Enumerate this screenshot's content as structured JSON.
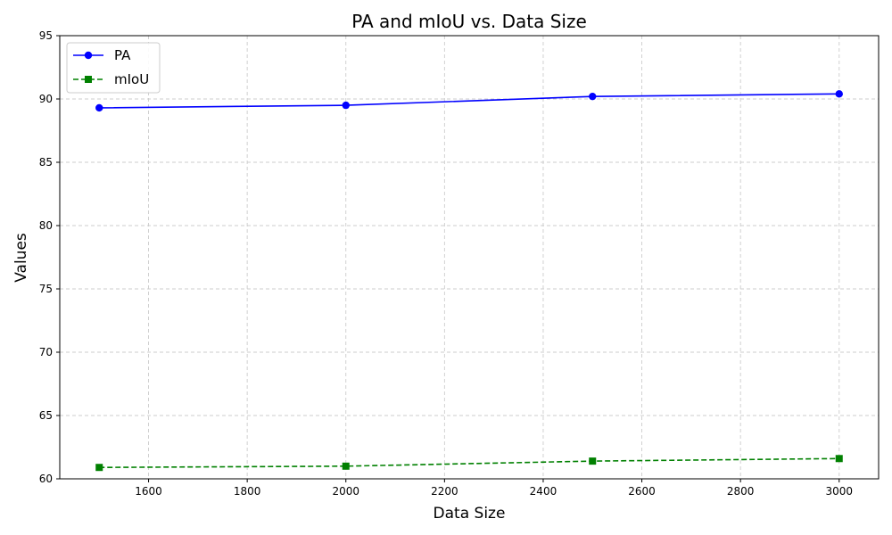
{
  "chart_data": {
    "type": "line",
    "title": "PA and mIoU vs. Data Size",
    "xlabel": "Data Size",
    "ylabel": "Values",
    "x": [
      1500,
      2000,
      2500,
      3000
    ],
    "xlim": [
      1420,
      3080
    ],
    "ylim": [
      60,
      95
    ],
    "xticks": [
      1600,
      1800,
      2000,
      2200,
      2400,
      2600,
      2800,
      3000
    ],
    "yticks": [
      60,
      65,
      70,
      75,
      80,
      85,
      90,
      95
    ],
    "grid": true,
    "legend_position": "top-left",
    "series": [
      {
        "name": "PA",
        "values": [
          89.3,
          89.5,
          90.2,
          90.4
        ],
        "color": "#0000ff",
        "dash": "solid",
        "marker": "circle"
      },
      {
        "name": "mIoU",
        "values": [
          60.9,
          61.0,
          61.4,
          61.6
        ],
        "color": "#008000",
        "dash": "dashed",
        "marker": "square"
      }
    ]
  }
}
